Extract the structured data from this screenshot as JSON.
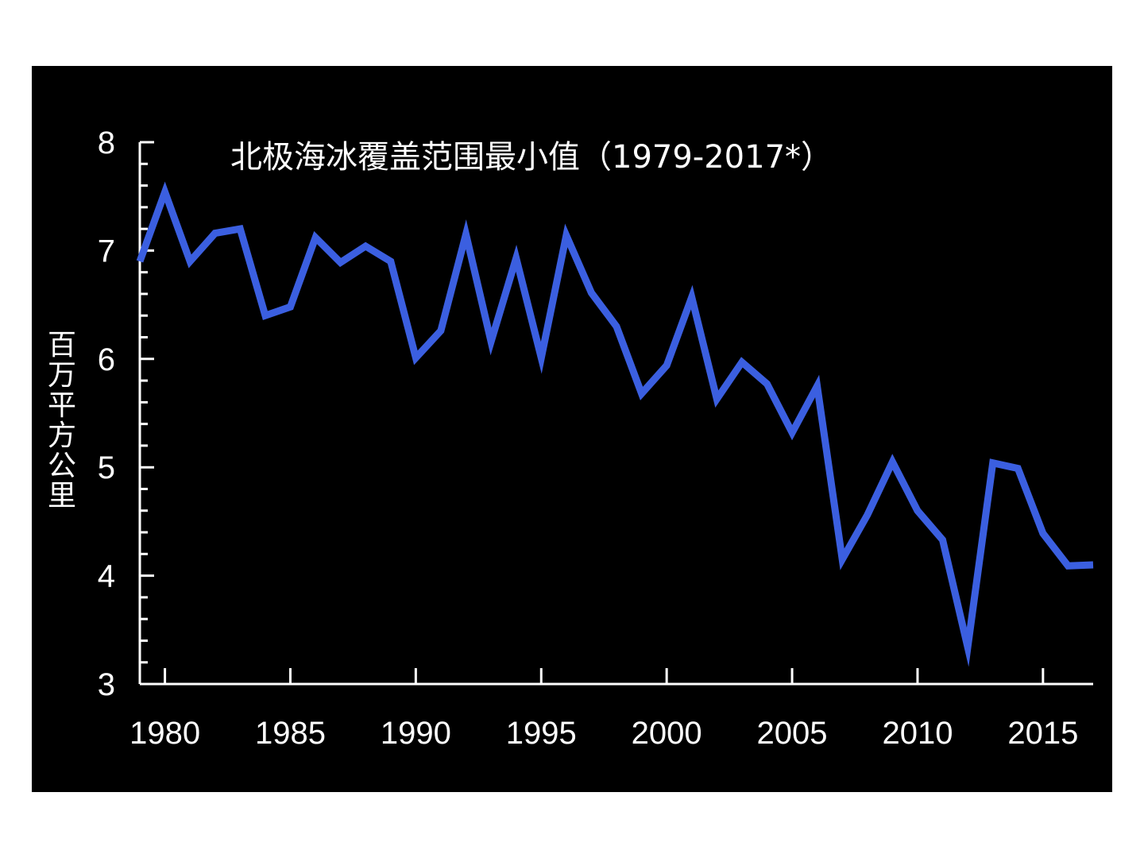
{
  "colors": {
    "background": "#000000",
    "axis": "#ffffff",
    "series_line": "#3b5fe0"
  },
  "chart_data": {
    "type": "line",
    "title": "北极海冰覆盖范围最小值（1979-2017*）",
    "xlabel": "",
    "ylabel": "百万平方公里",
    "xlim": [
      1979,
      2017
    ],
    "ylim": [
      3,
      8
    ],
    "xticks": [
      1980,
      1985,
      1990,
      1995,
      2000,
      2005,
      2010,
      2015
    ],
    "yticks": [
      3,
      4,
      5,
      6,
      7,
      8
    ],
    "y_minor_step": 0.2,
    "grid": false,
    "legend": "none",
    "series": [
      {
        "x": [
          1979,
          1980,
          1981,
          1982,
          1983,
          1984,
          1985,
          1986,
          1987,
          1988,
          1989,
          1990,
          1991,
          1992,
          1993,
          1994,
          1995,
          1996,
          1997,
          1998,
          1999,
          2000,
          2001,
          2002,
          2003,
          2004,
          2005,
          2006,
          2007,
          2008,
          2009,
          2010,
          2011,
          2012,
          2013,
          2014,
          2015,
          2016,
          2017
        ],
        "y": [
          6.9,
          7.54,
          6.9,
          7.16,
          7.2,
          6.4,
          6.48,
          7.12,
          6.89,
          7.04,
          6.9,
          6.01,
          6.26,
          7.15,
          6.16,
          6.93,
          6.01,
          7.14,
          6.61,
          6.3,
          5.68,
          5.94,
          6.57,
          5.63,
          5.97,
          5.77,
          5.32,
          5.75,
          4.15,
          4.56,
          5.05,
          4.6,
          4.33,
          3.34,
          5.04,
          4.99,
          4.39,
          4.09,
          4.1
        ]
      }
    ]
  }
}
